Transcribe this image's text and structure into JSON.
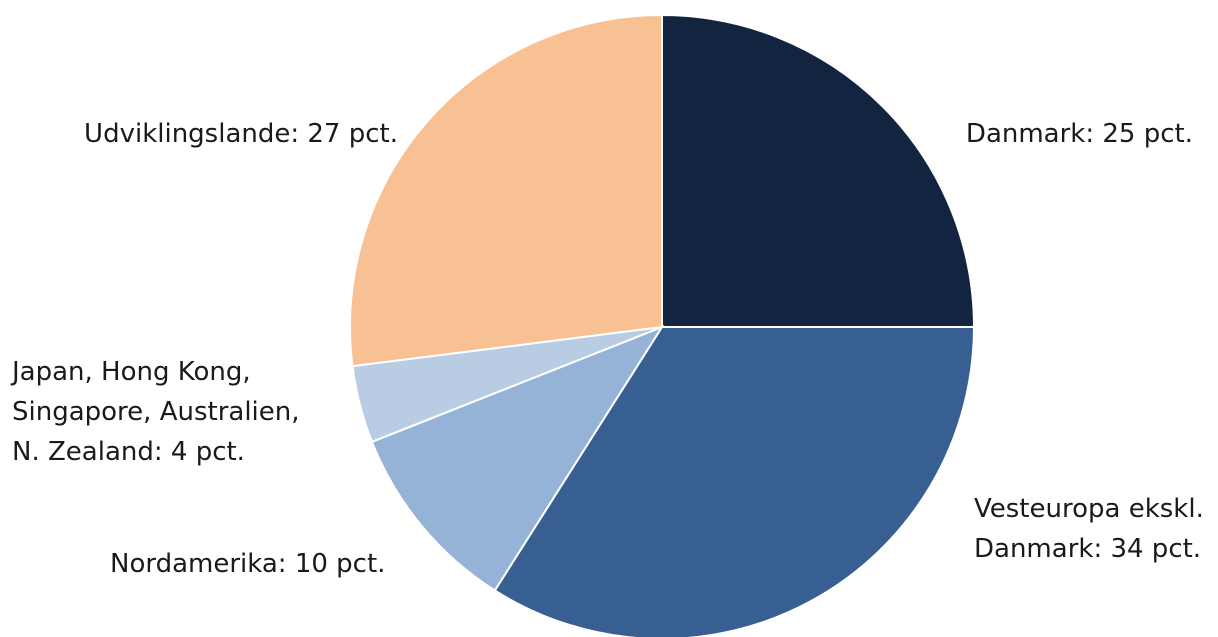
{
  "chart_data": {
    "type": "pie",
    "title": "",
    "start_angle_deg": 0,
    "direction": "clockwise",
    "legend": "none",
    "slices": [
      {
        "key": "danmark",
        "value": 25,
        "color": "#12243f",
        "label_lines": [
          "Danmark: 25 pct."
        ]
      },
      {
        "key": "vesteuropa",
        "value": 34,
        "color": "#375f92",
        "label_lines": [
          "Vesteuropa ekskl.",
          "Danmark: 34 pct."
        ]
      },
      {
        "key": "nordamerika",
        "value": 10,
        "color": "#95b3d7",
        "label_lines": [
          "Nordamerika: 10 pct."
        ]
      },
      {
        "key": "japan",
        "value": 4,
        "color": "#b8cce4",
        "label_lines": [
          "Japan, Hong Kong,",
          "Singapore, Australien,",
          "N. Zealand: 4 pct."
        ]
      },
      {
        "key": "udviklingslande",
        "value": 27,
        "color": "#f8c193",
        "label_lines": [
          "Udviklingslande: 27 pct."
        ]
      }
    ]
  }
}
